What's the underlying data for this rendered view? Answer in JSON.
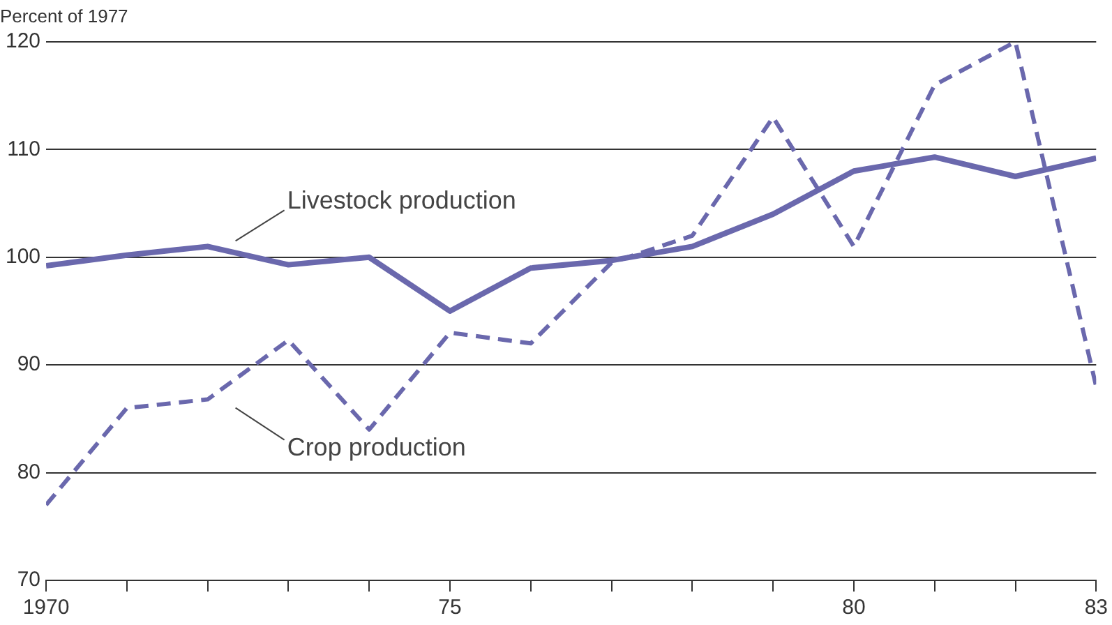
{
  "chart_data": {
    "type": "line",
    "ylabel": "Percent of 1977",
    "x": [
      1970,
      1971,
      1972,
      1973,
      1974,
      1975,
      1976,
      1977,
      1978,
      1979,
      1980,
      1981,
      1982,
      1983
    ],
    "series": [
      {
        "name": "Livestock production",
        "color": "#6a68ad",
        "line_style": "solid",
        "values": [
          99.2,
          100.2,
          101,
          99.3,
          100,
          95,
          99,
          99.7,
          101,
          104,
          108,
          109.3,
          107.5,
          109.2
        ]
      },
      {
        "name": "Crop production",
        "color": "#6a68ad",
        "line_style": "dashed",
        "values": [
          77,
          86,
          86.8,
          92.3,
          84,
          93,
          92,
          99.5,
          102,
          113,
          101,
          116,
          120,
          88
        ]
      }
    ],
    "xlim": [
      1970,
      1983
    ],
    "xticks": [
      {
        "value": 1970,
        "label": "1970"
      },
      {
        "value": 1971,
        "label": null
      },
      {
        "value": 1972,
        "label": null
      },
      {
        "value": 1973,
        "label": null
      },
      {
        "value": 1974,
        "label": null
      },
      {
        "value": 1975,
        "label": "75"
      },
      {
        "value": 1976,
        "label": null
      },
      {
        "value": 1977,
        "label": null
      },
      {
        "value": 1978,
        "label": null
      },
      {
        "value": 1979,
        "label": null
      },
      {
        "value": 1980,
        "label": "80"
      },
      {
        "value": 1981,
        "label": null
      },
      {
        "value": 1982,
        "label": null
      },
      {
        "value": 1983,
        "label": "83"
      }
    ],
    "ylim": [
      70,
      120
    ],
    "yticks": [
      70,
      80,
      90,
      100,
      110,
      120
    ],
    "grid": "y",
    "legend": false,
    "marker": "none"
  }
}
